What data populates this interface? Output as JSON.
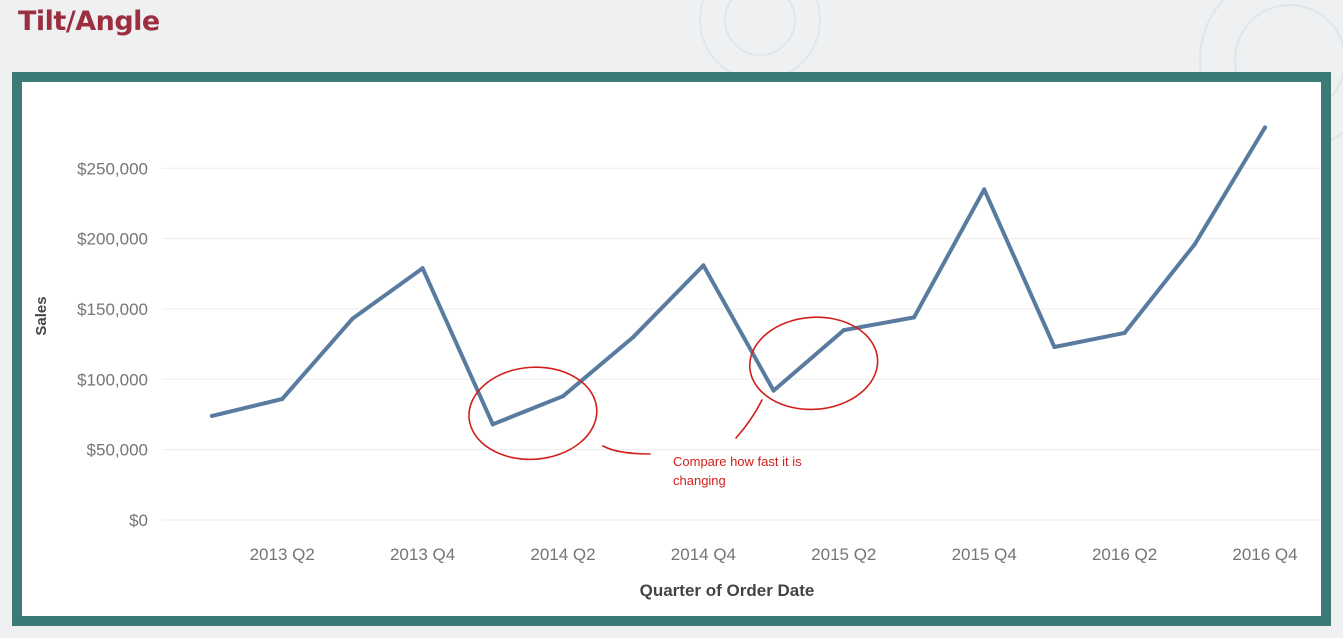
{
  "slide": {
    "title": "Tilt/Angle"
  },
  "annotation": {
    "text": "Compare how fast it is changing",
    "color": "#d0201c"
  },
  "colors": {
    "frame": "#3c7a78",
    "title": "#9c2f3f",
    "line": "#587b9f",
    "annotation": "#d0201c"
  },
  "chart_data": {
    "type": "line",
    "title": "",
    "xlabel": "Quarter of Order Date",
    "ylabel": "Sales",
    "categories": [
      "2013 Q1",
      "2013 Q2",
      "2013 Q3",
      "2013 Q4",
      "2014 Q1",
      "2014 Q2",
      "2014 Q3",
      "2014 Q4",
      "2015 Q1",
      "2015 Q2",
      "2015 Q3",
      "2015 Q4",
      "2016 Q1",
      "2016 Q2",
      "2016 Q3",
      "2016 Q4"
    ],
    "x_tick_labels": [
      "2013 Q2",
      "2013 Q4",
      "2014 Q2",
      "2014 Q4",
      "2015 Q2",
      "2015 Q4",
      "2016 Q2",
      "2016 Q4"
    ],
    "series": [
      {
        "values": [
          74000,
          86000,
          143000,
          179000,
          68000,
          88000,
          130000,
          181000,
          92000,
          135000,
          144000,
          235000,
          123000,
          133000,
          196000,
          279000
        ]
      }
    ],
    "y_ticks": [
      0,
      50000,
      100000,
      150000,
      200000,
      250000
    ],
    "y_tick_labels": [
      "$0",
      "$50,000",
      "$100,000",
      "$150,000",
      "$200,000",
      "$250,000"
    ],
    "ylim": [
      0,
      290000
    ],
    "grid": true,
    "line_color": "#587b9f",
    "highlight_circles": [
      {
        "around": [
          "2014 Q1",
          "2014 Q2"
        ]
      },
      {
        "around": [
          "2015 Q1",
          "2015 Q2"
        ]
      }
    ]
  }
}
